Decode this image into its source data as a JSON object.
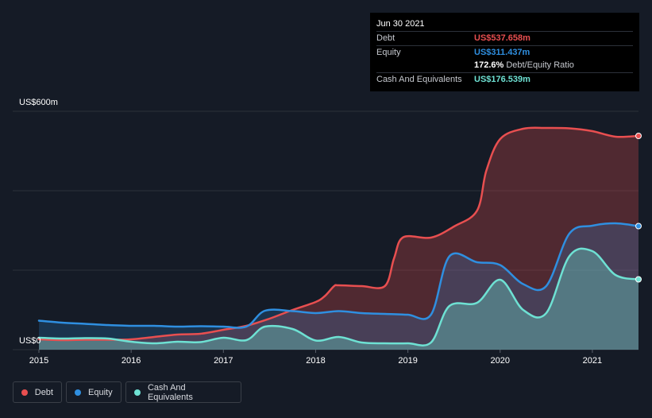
{
  "tooltip": {
    "date": "Jun 30 2021",
    "debt_label": "Debt",
    "debt_value": "US$537.658m",
    "equity_label": "Equity",
    "equity_value": "US$311.437m",
    "ratio_value": "172.6%",
    "ratio_label": "Debt/Equity Ratio",
    "cash_label": "Cash And Equivalents",
    "cash_value": "US$176.539m"
  },
  "legend": {
    "debt": "Debt",
    "equity": "Equity",
    "cash": "Cash And Equivalents"
  },
  "colors": {
    "background": "#151b26",
    "debt": "#e84f50",
    "equity": "#2f8fe0",
    "cash": "#6ee1d3",
    "grid": "#2b303b"
  },
  "chart_data": {
    "type": "area",
    "title": "",
    "xlabel": "",
    "ylabel": "",
    "y_top_label": "US$600m",
    "y_bottom_label": "US$0",
    "ylim": [
      0,
      600
    ],
    "xlim": [
      2015.0,
      2021.5
    ],
    "x_ticks": [
      "2015",
      "2016",
      "2017",
      "2018",
      "2019",
      "2020",
      "2021"
    ],
    "series": [
      {
        "name": "Debt",
        "color": "#e84f50",
        "points": [
          [
            2015.0,
            26
          ],
          [
            2015.25,
            24
          ],
          [
            2015.5,
            25
          ],
          [
            2015.75,
            25
          ],
          [
            2016.0,
            26
          ],
          [
            2016.25,
            32
          ],
          [
            2016.5,
            38
          ],
          [
            2016.75,
            40
          ],
          [
            2017.0,
            50
          ],
          [
            2017.25,
            60
          ],
          [
            2017.5,
            78
          ],
          [
            2017.75,
            100
          ],
          [
            2018.0,
            120
          ],
          [
            2018.1,
            135
          ],
          [
            2018.2,
            160
          ],
          [
            2018.25,
            162
          ],
          [
            2018.5,
            160
          ],
          [
            2018.75,
            160
          ],
          [
            2018.85,
            230
          ],
          [
            2018.95,
            283
          ],
          [
            2019.25,
            282
          ],
          [
            2019.5,
            310
          ],
          [
            2019.75,
            350
          ],
          [
            2019.85,
            450
          ],
          [
            2020.0,
            530
          ],
          [
            2020.25,
            556
          ],
          [
            2020.5,
            558
          ],
          [
            2020.75,
            557
          ],
          [
            2021.0,
            550
          ],
          [
            2021.25,
            536
          ],
          [
            2021.5,
            538
          ]
        ]
      },
      {
        "name": "Equity",
        "color": "#2f8fe0",
        "points": [
          [
            2015.0,
            73
          ],
          [
            2015.25,
            68
          ],
          [
            2015.5,
            65
          ],
          [
            2015.75,
            62
          ],
          [
            2016.0,
            60
          ],
          [
            2016.25,
            60
          ],
          [
            2016.5,
            58
          ],
          [
            2016.75,
            59
          ],
          [
            2017.0,
            58
          ],
          [
            2017.25,
            58
          ],
          [
            2017.45,
            98
          ],
          [
            2017.75,
            97
          ],
          [
            2018.0,
            92
          ],
          [
            2018.25,
            97
          ],
          [
            2018.5,
            92
          ],
          [
            2018.75,
            90
          ],
          [
            2019.0,
            88
          ],
          [
            2019.25,
            88
          ],
          [
            2019.45,
            235
          ],
          [
            2019.75,
            220
          ],
          [
            2020.0,
            213
          ],
          [
            2020.25,
            165
          ],
          [
            2020.5,
            160
          ],
          [
            2020.75,
            292
          ],
          [
            2021.0,
            312
          ],
          [
            2021.25,
            318
          ],
          [
            2021.5,
            311
          ]
        ]
      },
      {
        "name": "Cash And Equivalents",
        "color": "#6ee1d3",
        "points": [
          [
            2015.0,
            30
          ],
          [
            2015.25,
            28
          ],
          [
            2015.5,
            29
          ],
          [
            2015.75,
            28
          ],
          [
            2016.0,
            20
          ],
          [
            2016.25,
            16
          ],
          [
            2016.5,
            20
          ],
          [
            2016.75,
            19
          ],
          [
            2017.0,
            30
          ],
          [
            2017.25,
            24
          ],
          [
            2017.45,
            58
          ],
          [
            2017.75,
            52
          ],
          [
            2018.0,
            23
          ],
          [
            2018.25,
            32
          ],
          [
            2018.5,
            18
          ],
          [
            2018.75,
            16
          ],
          [
            2019.0,
            16
          ],
          [
            2019.25,
            18
          ],
          [
            2019.45,
            110
          ],
          [
            2019.75,
            118
          ],
          [
            2020.0,
            176
          ],
          [
            2020.25,
            100
          ],
          [
            2020.5,
            92
          ],
          [
            2020.75,
            235
          ],
          [
            2021.0,
            248
          ],
          [
            2021.25,
            188
          ],
          [
            2021.5,
            177
          ]
        ]
      }
    ]
  }
}
